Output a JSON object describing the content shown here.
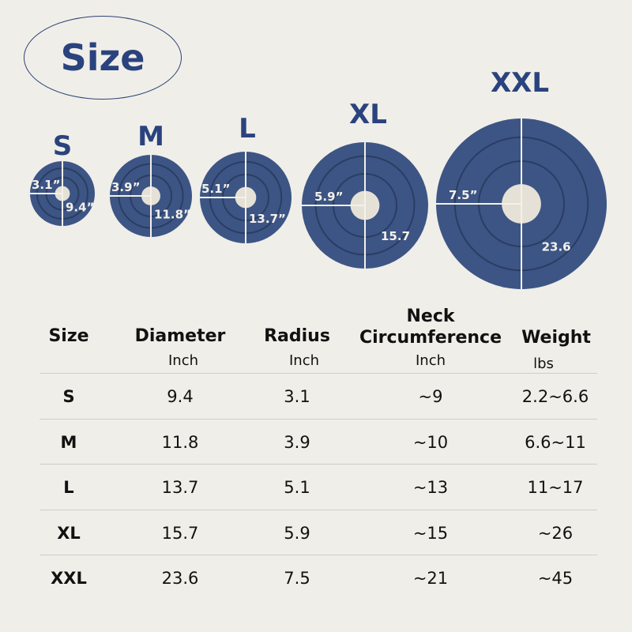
{
  "title": "Size",
  "colors": {
    "accent": "#2a437e",
    "cushion": "#3d5585",
    "collar": "#e6e1d6",
    "background": "#f0eee8"
  },
  "sizes": [
    {
      "label": "S",
      "radius": "3.1”",
      "diameter": "9.4”"
    },
    {
      "label": "M",
      "radius": "3.9”",
      "diameter": "11.8”"
    },
    {
      "label": "L",
      "radius": "5.1”",
      "diameter": "13.7”"
    },
    {
      "label": "XL",
      "radius": "5.9”",
      "diameter": "15.7"
    },
    {
      "label": "XXL",
      "radius": "7.5”",
      "diameter": "23.6"
    }
  ],
  "table": {
    "headers": [
      {
        "label": "Size",
        "unit": ""
      },
      {
        "label": "Diameter",
        "unit": "Inch"
      },
      {
        "label": "Radius",
        "unit": "Inch"
      },
      {
        "label": "Neck Circumference",
        "unit": "Inch"
      },
      {
        "label": "Weight",
        "unit": "lbs"
      }
    ],
    "rows": [
      [
        "S",
        "9.4",
        "3.1",
        "~9",
        "2.2~6.6"
      ],
      [
        "M",
        "11.8",
        "3.9",
        "~10",
        "6.6~11"
      ],
      [
        "L",
        "13.7",
        "5.1",
        "~13",
        "11~17"
      ],
      [
        "XL",
        "15.7",
        "5.9",
        "~15",
        "~26"
      ],
      [
        "XXL",
        "23.6",
        "7.5",
        "~21",
        "~45"
      ]
    ]
  }
}
